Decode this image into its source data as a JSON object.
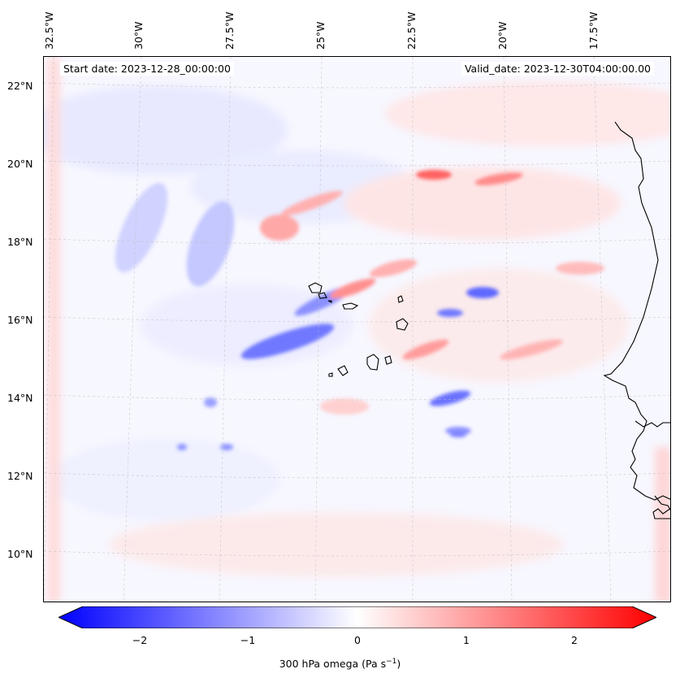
{
  "map": {
    "start_date": "Start date: 2023-12-28_00:00:00",
    "valid_date": "Valid_date: 2023-12-30T04:00:00.00",
    "lon_labels": [
      "32.5°W",
      "30°W",
      "27.5°W",
      "25°W",
      "22.5°W",
      "20°W",
      "17.5°W"
    ],
    "lat_labels": [
      "22°N",
      "20°N",
      "18°N",
      "16°N",
      "14°N",
      "12°N",
      "10°N"
    ],
    "colors": {
      "negative": "#0000ff",
      "zero": "#ffffff",
      "positive": "#ff0000",
      "coast": "#000000"
    }
  },
  "colorbar": {
    "ticks": [
      "−2",
      "−1",
      "0",
      "1",
      "2"
    ],
    "label": "300 hPa omega (Pa s",
    "label_sup": "−1",
    "label_end": ")"
  }
}
